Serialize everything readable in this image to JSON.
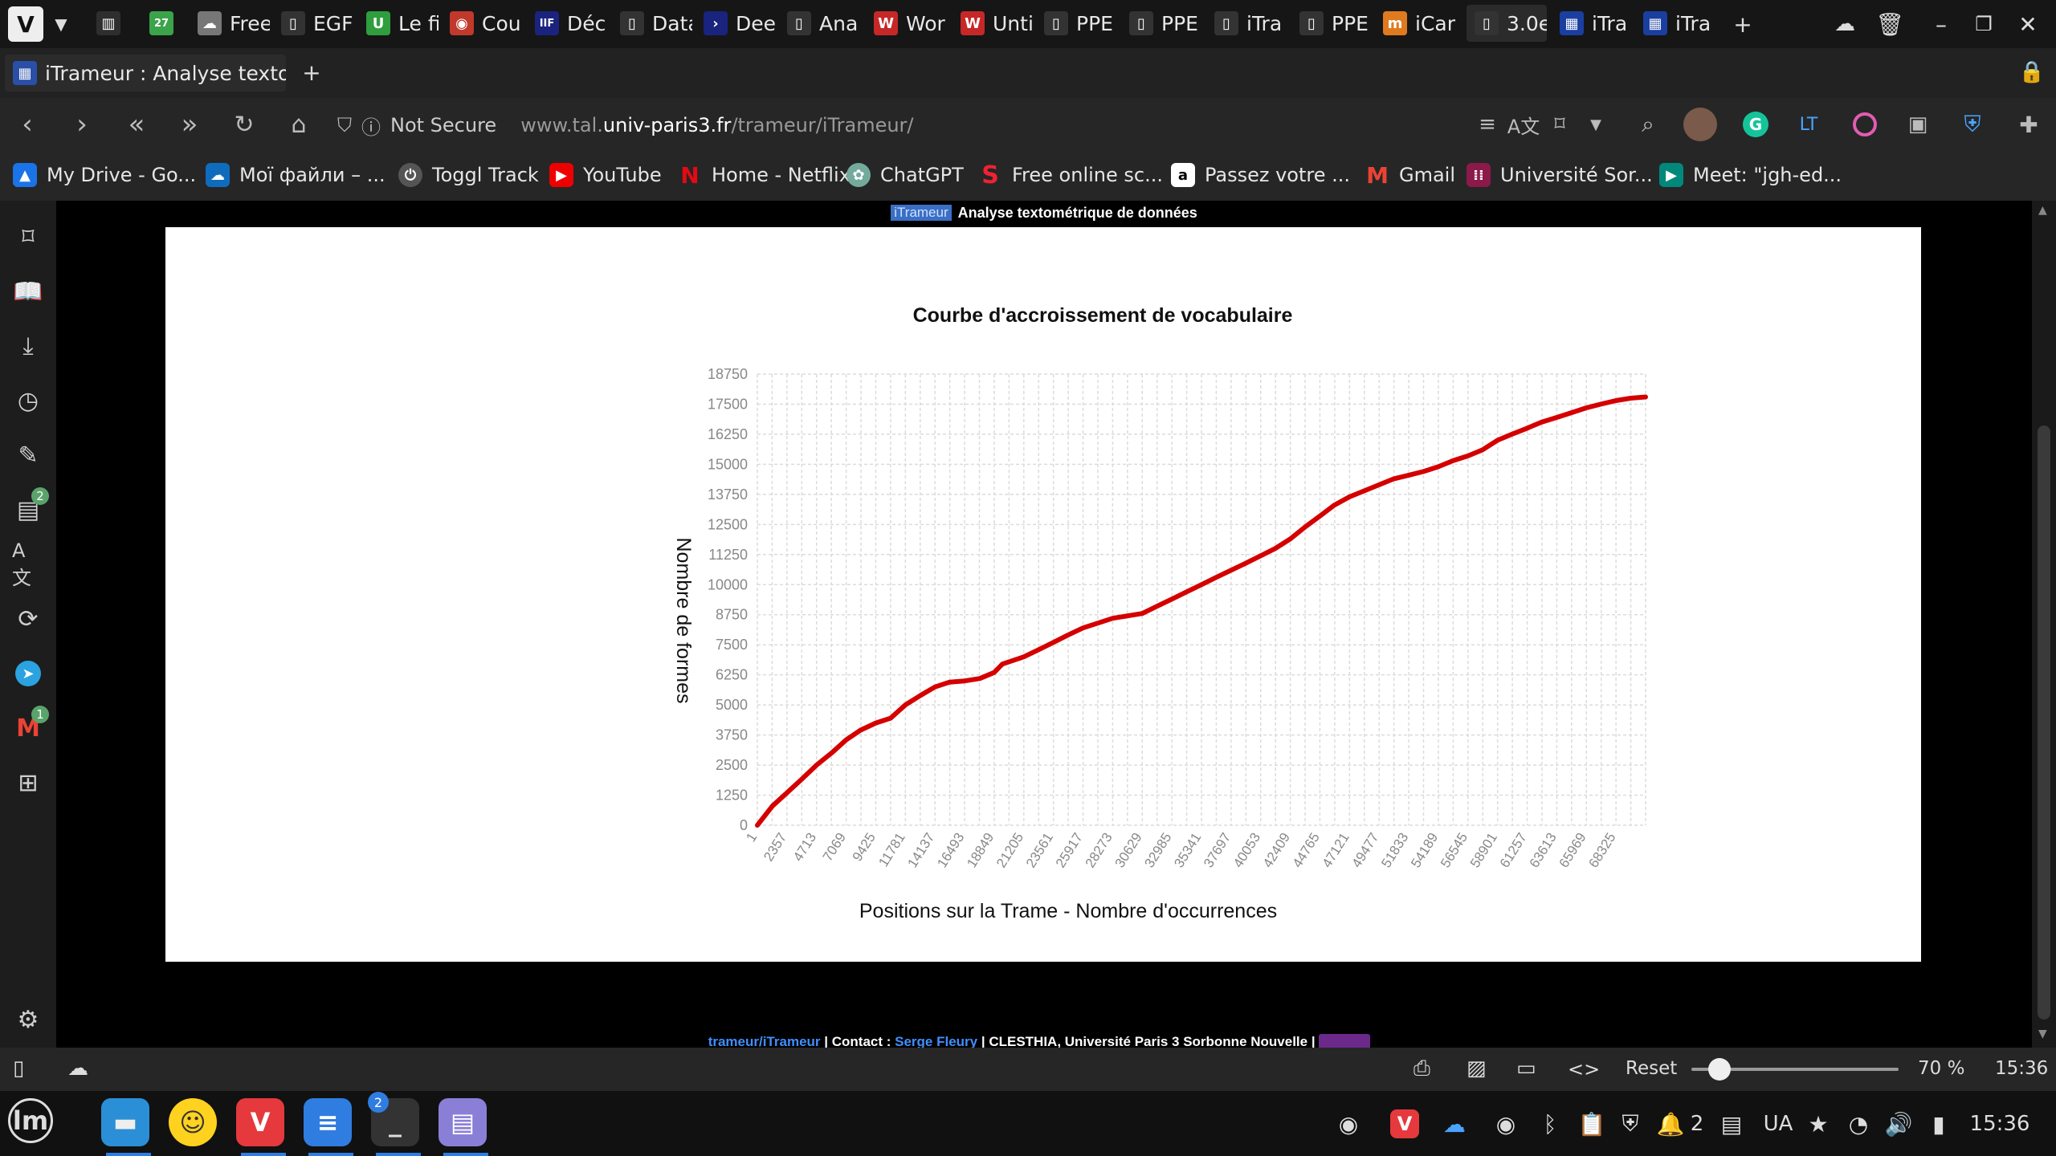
{
  "tabs": [
    {
      "label": ""
    },
    {
      "label": ""
    },
    {
      "label": "Free"
    },
    {
      "label": "EGF"
    },
    {
      "label": "Le fi"
    },
    {
      "label": "Cou"
    },
    {
      "label": "Déc"
    },
    {
      "label": "Data"
    },
    {
      "label": "Dee"
    },
    {
      "label": "Ana"
    },
    {
      "label": "Wor"
    },
    {
      "label": "Unti"
    },
    {
      "label": "PPE"
    },
    {
      "label": "PPE"
    },
    {
      "label": "iTra"
    },
    {
      "label": "PPE"
    },
    {
      "label": "iCar"
    },
    {
      "label": "3.0e"
    },
    {
      "label": "iTra"
    },
    {
      "label": "iTra"
    }
  ],
  "window": {
    "tab_title": "iTrameur : Analyse textométr"
  },
  "address": {
    "security": "Not Secure",
    "url_prefix": "www.tal.",
    "url_domain": "univ-paris3.fr",
    "url_path": "/trameur/iTrameur/"
  },
  "bookmarks": [
    {
      "label": "My Drive - Go..."
    },
    {
      "label": "Мої файли – ..."
    },
    {
      "label": "Toggl Track"
    },
    {
      "label": "YouTube"
    },
    {
      "label": "Home - Netflix"
    },
    {
      "label": "ChatGPT"
    },
    {
      "label": "Free online sc..."
    },
    {
      "label": "Passez votre ..."
    },
    {
      "label": "Gmail"
    },
    {
      "label": "Université Sor..."
    },
    {
      "label": "Meet: \"jgh-ed..."
    }
  ],
  "sidebar": {
    "badge_calendar": "2",
    "badge_mail": "1"
  },
  "page": {
    "brand": "iTrameur",
    "header": "Analyse textométrique de données",
    "footer": {
      "link1": "trameur/iTrameur",
      "sep1": " | Contact : ",
      "link2": "Serge Fleury",
      "rest": " | CLESTHIA, Université Paris 3 Sorbonne Nouvelle | "
    }
  },
  "chart_data": {
    "type": "line",
    "title": "Courbe d'accroissement de vocabulaire",
    "xlabel": "Positions sur la Trame - Nombre d'occurrences",
    "ylabel": "Nombre de formes",
    "y_ticks": [
      0,
      1250,
      2500,
      3750,
      5000,
      6250,
      7500,
      8750,
      10000,
      11250,
      12500,
      13750,
      15000,
      16250,
      17500,
      18750
    ],
    "ylim": [
      0,
      18750
    ],
    "x_ticks": [
      1,
      2357,
      4713,
      7069,
      9425,
      11781,
      14137,
      16493,
      18849,
      21205,
      23561,
      25917,
      28273,
      30629,
      32985,
      35341,
      37697,
      40053,
      42409,
      44765,
      47121,
      49477,
      51833,
      54189,
      56545,
      58901,
      61257,
      63613,
      65969,
      68325
    ],
    "xlim": [
      1,
      70681
    ],
    "grid": true,
    "line_color": "#d40000",
    "series": [
      {
        "x": [
          1,
          1200,
          2357,
          3500,
          4713,
          5900,
          7069,
          8200,
          9425,
          10600,
          11781,
          13000,
          14137,
          15300,
          16493,
          17700,
          18849,
          19500,
          21205,
          22400,
          23561,
          24700,
          25917,
          27100,
          28273,
          29450,
          30629,
          31800,
          32985,
          34150,
          35341,
          36500,
          37697,
          38900,
          40053,
          41200,
          42409,
          43600,
          44765,
          45900,
          47121,
          48300,
          49477,
          50650,
          51833,
          53000,
          54189,
          55350,
          56545,
          57700,
          58901,
          60050,
          61257,
          62400,
          63613,
          64800,
          65969,
          67100,
          68325,
          69500,
          70681
        ],
        "y": [
          0,
          800,
          1350,
          1900,
          2500,
          3000,
          3550,
          3950,
          4250,
          4450,
          5000,
          5400,
          5750,
          5950,
          6000,
          6100,
          6350,
          6700,
          7000,
          7300,
          7600,
          7900,
          8200,
          8400,
          8600,
          8700,
          8800,
          9100,
          9400,
          9700,
          10000,
          10300,
          10600,
          10900,
          11200,
          11500,
          11900,
          12400,
          12850,
          13300,
          13650,
          13900,
          14150,
          14400,
          14550,
          14700,
          14900,
          15150,
          15350,
          15600,
          16000,
          16250,
          16500,
          16750,
          16950,
          17150,
          17350,
          17500,
          17650,
          17750,
          17800
        ]
      }
    ]
  },
  "statusbar": {
    "reset": "Reset",
    "zoom": "70 %",
    "time": "15:36"
  },
  "taskbar": {
    "badge_terminal": "2",
    "tray_count": "2",
    "lang": "UA",
    "time": "15:36"
  }
}
